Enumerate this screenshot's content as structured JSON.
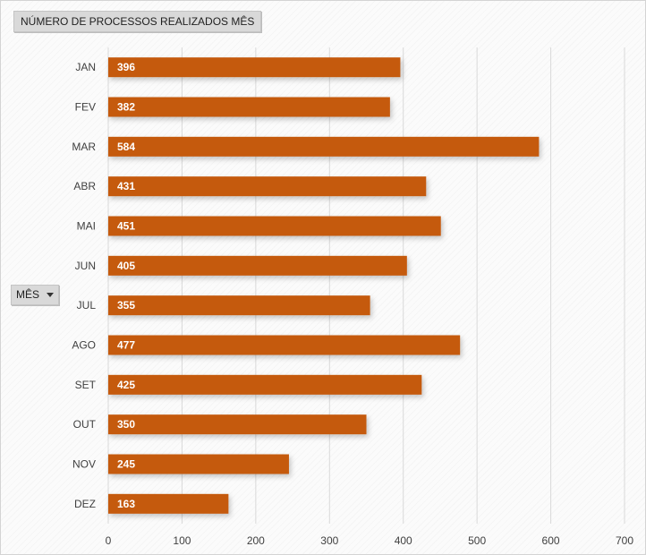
{
  "chart_data": {
    "type": "bar",
    "orientation": "horizontal",
    "title": "NÚMERO  DE  PROCESSOS  REALIZADOS   MÊS",
    "axis_field_label": "MÊS",
    "categories": [
      "JAN",
      "FEV",
      "MAR",
      "ABR",
      "MAI",
      "JUN",
      "JUL",
      "AGO",
      "SET",
      "OUT",
      "NOV",
      "DEZ"
    ],
    "values": [
      396,
      382,
      584,
      431,
      451,
      405,
      355,
      477,
      425,
      350,
      245,
      163
    ],
    "data_labels": [
      "396",
      "382",
      "584",
      "431",
      "451",
      "405",
      "355",
      "477",
      "425",
      "350",
      "245",
      "163"
    ],
    "xlim": [
      0,
      700
    ],
    "xticks": [
      0,
      100,
      200,
      300,
      400,
      500,
      600,
      700
    ],
    "xtick_labels": [
      "0",
      "100",
      "200",
      "300",
      "400",
      "500",
      "600",
      "700"
    ],
    "grid": true,
    "bar_color": "#c55a11",
    "grid_color": "#d9d9d9"
  }
}
